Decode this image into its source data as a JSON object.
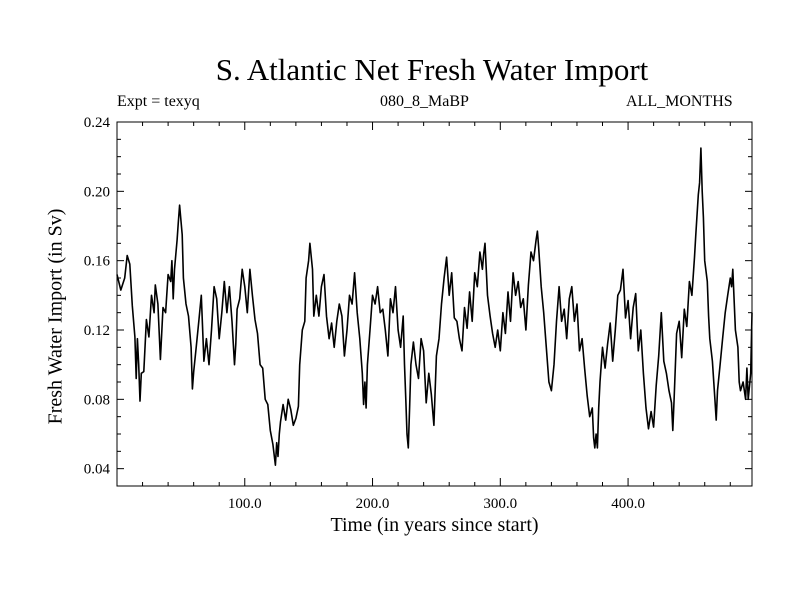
{
  "header": {
    "title": "S. Atlantic Net Fresh Water Import",
    "left": "Expt = texyq",
    "center": "080_8_MaBP",
    "right": "ALL_MONTHS"
  },
  "chart_data": {
    "type": "line",
    "title": "S. Atlantic Net Fresh Water Import",
    "xlabel": "Time (in years since start)",
    "ylabel": "Fresh Water Import (in Sv)",
    "xlim": [
      0,
      497
    ],
    "ylim": [
      0.03,
      0.24
    ],
    "xticks": [
      100,
      200,
      300,
      400
    ],
    "xtick_labels": [
      "100.0",
      "200.0",
      "300.0",
      "400.0"
    ],
    "yticks": [
      0.04,
      0.08,
      0.12,
      0.16,
      0.2,
      0.24
    ],
    "ytick_labels": [
      "0.04",
      "0.08",
      "0.12",
      "0.16",
      "0.20",
      "0.24"
    ],
    "grid": false,
    "series": [
      {
        "values": [
          [
            0,
            0.152
          ],
          [
            3,
            0.143
          ],
          [
            6,
            0.15
          ],
          [
            8,
            0.163
          ],
          [
            10,
            0.158
          ],
          [
            12,
            0.134
          ],
          [
            14,
            0.116
          ],
          [
            15,
            0.092
          ],
          [
            16,
            0.115
          ],
          [
            17,
            0.1
          ],
          [
            18,
            0.079
          ],
          [
            19,
            0.095
          ],
          [
            21,
            0.096
          ],
          [
            23,
            0.126
          ],
          [
            25,
            0.116
          ],
          [
            27,
            0.14
          ],
          [
            29,
            0.13
          ],
          [
            30,
            0.146
          ],
          [
            32,
            0.135
          ],
          [
            34,
            0.103
          ],
          [
            36,
            0.133
          ],
          [
            38,
            0.13
          ],
          [
            40,
            0.152
          ],
          [
            42,
            0.148
          ],
          [
            43,
            0.16
          ],
          [
            44,
            0.138
          ],
          [
            45,
            0.155
          ],
          [
            47,
            0.172
          ],
          [
            48,
            0.182
          ],
          [
            49,
            0.192
          ],
          [
            51,
            0.175
          ],
          [
            52,
            0.15
          ],
          [
            54,
            0.135
          ],
          [
            56,
            0.128
          ],
          [
            58,
            0.11
          ],
          [
            59,
            0.086
          ],
          [
            60,
            0.096
          ],
          [
            62,
            0.11
          ],
          [
            64,
            0.125
          ],
          [
            66,
            0.14
          ],
          [
            68,
            0.102
          ],
          [
            70,
            0.115
          ],
          [
            72,
            0.1
          ],
          [
            74,
            0.12
          ],
          [
            76,
            0.145
          ],
          [
            78,
            0.138
          ],
          [
            80,
            0.115
          ],
          [
            82,
            0.13
          ],
          [
            84,
            0.148
          ],
          [
            86,
            0.13
          ],
          [
            88,
            0.145
          ],
          [
            90,
            0.125
          ],
          [
            92,
            0.1
          ],
          [
            93,
            0.112
          ],
          [
            94,
            0.132
          ],
          [
            96,
            0.138
          ],
          [
            98,
            0.155
          ],
          [
            100,
            0.145
          ],
          [
            102,
            0.13
          ],
          [
            104,
            0.155
          ],
          [
            106,
            0.14
          ],
          [
            108,
            0.126
          ],
          [
            110,
            0.118
          ],
          [
            112,
            0.1
          ],
          [
            114,
            0.098
          ],
          [
            116,
            0.08
          ],
          [
            118,
            0.077
          ],
          [
            120,
            0.062
          ],
          [
            122,
            0.054
          ],
          [
            124,
            0.042
          ],
          [
            125,
            0.055
          ],
          [
            126,
            0.047
          ],
          [
            127,
            0.06
          ],
          [
            128,
            0.067
          ],
          [
            130,
            0.077
          ],
          [
            132,
            0.068
          ],
          [
            134,
            0.08
          ],
          [
            136,
            0.074
          ],
          [
            138,
            0.065
          ],
          [
            140,
            0.069
          ],
          [
            142,
            0.076
          ],
          [
            143,
            0.1
          ],
          [
            145,
            0.12
          ],
          [
            147,
            0.125
          ],
          [
            148,
            0.15
          ],
          [
            150,
            0.16
          ],
          [
            151,
            0.17
          ],
          [
            153,
            0.155
          ],
          [
            154,
            0.128
          ],
          [
            156,
            0.14
          ],
          [
            158,
            0.128
          ],
          [
            160,
            0.145
          ],
          [
            162,
            0.152
          ],
          [
            164,
            0.128
          ],
          [
            166,
            0.115
          ],
          [
            168,
            0.124
          ],
          [
            170,
            0.11
          ],
          [
            172,
            0.125
          ],
          [
            174,
            0.135
          ],
          [
            176,
            0.128
          ],
          [
            178,
            0.105
          ],
          [
            180,
            0.12
          ],
          [
            182,
            0.14
          ],
          [
            184,
            0.135
          ],
          [
            186,
            0.153
          ],
          [
            188,
            0.13
          ],
          [
            190,
            0.115
          ],
          [
            192,
            0.095
          ],
          [
            193,
            0.077
          ],
          [
            194,
            0.09
          ],
          [
            195,
            0.075
          ],
          [
            196,
            0.1
          ],
          [
            198,
            0.12
          ],
          [
            200,
            0.14
          ],
          [
            202,
            0.135
          ],
          [
            204,
            0.145
          ],
          [
            206,
            0.13
          ],
          [
            208,
            0.132
          ],
          [
            210,
            0.12
          ],
          [
            212,
            0.105
          ],
          [
            214,
            0.138
          ],
          [
            216,
            0.13
          ],
          [
            218,
            0.145
          ],
          [
            220,
            0.12
          ],
          [
            222,
            0.11
          ],
          [
            224,
            0.128
          ],
          [
            225,
            0.1
          ],
          [
            226,
            0.08
          ],
          [
            227,
            0.06
          ],
          [
            228,
            0.052
          ],
          [
            229,
            0.075
          ],
          [
            230,
            0.1
          ],
          [
            232,
            0.113
          ],
          [
            234,
            0.1
          ],
          [
            236,
            0.092
          ],
          [
            238,
            0.115
          ],
          [
            240,
            0.108
          ],
          [
            242,
            0.078
          ],
          [
            244,
            0.095
          ],
          [
            246,
            0.083
          ],
          [
            248,
            0.065
          ],
          [
            250,
            0.105
          ],
          [
            252,
            0.115
          ],
          [
            254,
            0.135
          ],
          [
            256,
            0.15
          ],
          [
            258,
            0.162
          ],
          [
            260,
            0.14
          ],
          [
            262,
            0.153
          ],
          [
            264,
            0.127
          ],
          [
            266,
            0.125
          ],
          [
            268,
            0.115
          ],
          [
            270,
            0.108
          ],
          [
            272,
            0.133
          ],
          [
            274,
            0.121
          ],
          [
            276,
            0.142
          ],
          [
            278,
            0.125
          ],
          [
            280,
            0.153
          ],
          [
            282,
            0.145
          ],
          [
            284,
            0.165
          ],
          [
            286,
            0.155
          ],
          [
            287,
            0.164
          ],
          [
            288,
            0.17
          ],
          [
            290,
            0.14
          ],
          [
            292,
            0.128
          ],
          [
            294,
            0.118
          ],
          [
            296,
            0.11
          ],
          [
            298,
            0.12
          ],
          [
            300,
            0.108
          ],
          [
            302,
            0.13
          ],
          [
            304,
            0.118
          ],
          [
            306,
            0.142
          ],
          [
            308,
            0.125
          ],
          [
            310,
            0.153
          ],
          [
            312,
            0.14
          ],
          [
            314,
            0.148
          ],
          [
            316,
            0.133
          ],
          [
            318,
            0.138
          ],
          [
            320,
            0.12
          ],
          [
            322,
            0.146
          ],
          [
            324,
            0.165
          ],
          [
            326,
            0.16
          ],
          [
            328,
            0.172
          ],
          [
            329,
            0.177
          ],
          [
            330,
            0.168
          ],
          [
            332,
            0.145
          ],
          [
            334,
            0.13
          ],
          [
            336,
            0.11
          ],
          [
            338,
            0.09
          ],
          [
            340,
            0.085
          ],
          [
            342,
            0.1
          ],
          [
            344,
            0.125
          ],
          [
            346,
            0.145
          ],
          [
            348,
            0.125
          ],
          [
            350,
            0.132
          ],
          [
            352,
            0.115
          ],
          [
            354,
            0.138
          ],
          [
            356,
            0.145
          ],
          [
            358,
            0.125
          ],
          [
            360,
            0.135
          ],
          [
            362,
            0.108
          ],
          [
            364,
            0.115
          ],
          [
            366,
            0.098
          ],
          [
            368,
            0.082
          ],
          [
            370,
            0.07
          ],
          [
            372,
            0.075
          ],
          [
            373,
            0.058
          ],
          [
            374,
            0.052
          ],
          [
            375,
            0.06
          ],
          [
            376,
            0.052
          ],
          [
            377,
            0.075
          ],
          [
            378,
            0.09
          ],
          [
            380,
            0.11
          ],
          [
            382,
            0.098
          ],
          [
            384,
            0.112
          ],
          [
            386,
            0.124
          ],
          [
            388,
            0.102
          ],
          [
            390,
            0.12
          ],
          [
            392,
            0.14
          ],
          [
            394,
            0.143
          ],
          [
            396,
            0.155
          ],
          [
            398,
            0.127
          ],
          [
            400,
            0.137
          ],
          [
            402,
            0.115
          ],
          [
            404,
            0.133
          ],
          [
            406,
            0.141
          ],
          [
            408,
            0.108
          ],
          [
            410,
            0.12
          ],
          [
            412,
            0.095
          ],
          [
            414,
            0.075
          ],
          [
            416,
            0.063
          ],
          [
            418,
            0.073
          ],
          [
            420,
            0.064
          ],
          [
            422,
            0.088
          ],
          [
            424,
            0.105
          ],
          [
            426,
            0.13
          ],
          [
            428,
            0.102
          ],
          [
            430,
            0.095
          ],
          [
            432,
            0.085
          ],
          [
            434,
            0.078
          ],
          [
            435,
            0.062
          ],
          [
            436,
            0.08
          ],
          [
            438,
            0.118
          ],
          [
            440,
            0.125
          ],
          [
            442,
            0.104
          ],
          [
            444,
            0.132
          ],
          [
            446,
            0.122
          ],
          [
            448,
            0.148
          ],
          [
            450,
            0.14
          ],
          [
            452,
            0.162
          ],
          [
            453,
            0.175
          ],
          [
            455,
            0.198
          ],
          [
            456,
            0.205
          ],
          [
            457,
            0.225
          ],
          [
            458,
            0.2
          ],
          [
            459,
            0.185
          ],
          [
            460,
            0.16
          ],
          [
            462,
            0.148
          ],
          [
            463,
            0.128
          ],
          [
            464,
            0.115
          ],
          [
            466,
            0.102
          ],
          [
            468,
            0.08
          ],
          [
            469,
            0.068
          ],
          [
            470,
            0.085
          ],
          [
            472,
            0.1
          ],
          [
            474,
            0.115
          ],
          [
            476,
            0.13
          ],
          [
            478,
            0.14
          ],
          [
            480,
            0.15
          ],
          [
            481,
            0.145
          ],
          [
            482,
            0.155
          ],
          [
            484,
            0.12
          ],
          [
            486,
            0.11
          ],
          [
            487,
            0.09
          ],
          [
            488,
            0.085
          ],
          [
            490,
            0.09
          ],
          [
            492,
            0.08
          ],
          [
            493,
            0.098
          ],
          [
            494,
            0.08
          ],
          [
            496,
            0.095
          ],
          [
            497,
            0.13
          ]
        ]
      }
    ]
  }
}
